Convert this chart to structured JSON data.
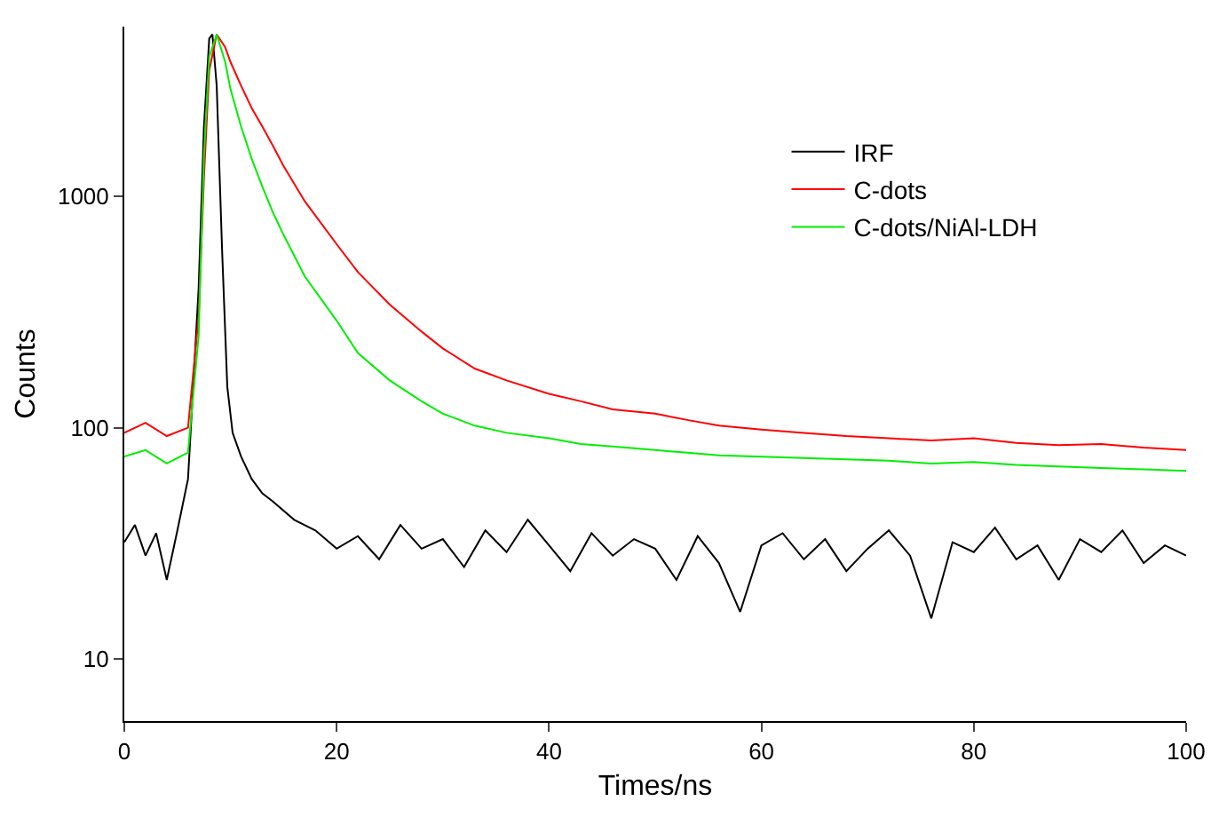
{
  "chart_data": {
    "type": "line",
    "xlabel": "Times/ns",
    "ylabel": "Counts",
    "log": "y",
    "xlim": [
      0,
      100
    ],
    "xticks": [
      0,
      20,
      40,
      60,
      80,
      100
    ],
    "ylim": [
      5.4,
      5400
    ],
    "yticks": [
      10,
      100,
      1000
    ],
    "legend": "top right",
    "marker": "none",
    "line_style": "solid",
    "series": [
      {
        "name": "IRF",
        "color": "#000000",
        "x": [
          0,
          1,
          2,
          3,
          4,
          5,
          6,
          7,
          7.5,
          8,
          8.3,
          8.7,
          9.2,
          9.7,
          10.2,
          11,
          12,
          13,
          14,
          16,
          18,
          20,
          22,
          24,
          26,
          28,
          30,
          32,
          34,
          36,
          38,
          40,
          42,
          44,
          46,
          48,
          50,
          52,
          54,
          56,
          58,
          60,
          62,
          64,
          66,
          68,
          70,
          72,
          74,
          76,
          78,
          80,
          82,
          84,
          86,
          88,
          90,
          92,
          94,
          96,
          98,
          100
        ],
        "values": [
          32,
          38,
          28,
          35,
          22,
          36,
          60,
          400,
          2000,
          4800,
          5000,
          3000,
          600,
          150,
          95,
          75,
          60,
          52,
          48,
          40,
          36,
          30,
          34,
          27,
          38,
          30,
          33,
          25,
          36,
          29,
          40,
          31,
          24,
          35,
          28,
          33,
          30,
          22,
          34,
          26,
          16,
          31,
          35,
          27,
          33,
          24,
          30,
          36,
          28,
          15,
          32,
          29,
          37,
          27,
          31,
          22,
          33,
          29,
          36,
          26,
          31,
          28
        ]
      },
      {
        "name": "C-dots",
        "color": "#ff0000",
        "x": [
          0,
          2,
          4,
          6,
          7,
          7.5,
          8,
          8.7,
          9.5,
          10,
          11,
          12,
          13,
          14,
          15,
          17,
          20,
          22,
          25,
          28,
          30,
          33,
          36,
          40,
          43,
          46,
          50,
          53,
          56,
          60,
          64,
          68,
          72,
          76,
          80,
          84,
          88,
          92,
          96,
          100
        ],
        "values": [
          95,
          105,
          92,
          100,
          300,
          1200,
          3500,
          5000,
          4400,
          3800,
          3000,
          2400,
          2000,
          1650,
          1350,
          950,
          620,
          470,
          340,
          260,
          220,
          180,
          160,
          140,
          130,
          120,
          115,
          108,
          102,
          98,
          95,
          92,
          90,
          88,
          90,
          86,
          84,
          85,
          82,
          80
        ]
      },
      {
        "name": "C-dots/NiAl-LDH",
        "color": "#00ee00",
        "x": [
          0,
          2,
          4,
          6,
          7,
          7.5,
          8,
          8.7,
          9.5,
          10,
          11,
          12,
          13,
          14,
          15,
          17,
          20,
          22,
          25,
          28,
          30,
          33,
          36,
          40,
          43,
          46,
          50,
          53,
          56,
          60,
          64,
          68,
          72,
          76,
          80,
          84,
          88,
          92,
          96,
          100
        ],
        "values": [
          75,
          80,
          70,
          78,
          250,
          1500,
          4000,
          5000,
          3800,
          2900,
          2000,
          1450,
          1100,
          850,
          680,
          450,
          290,
          210,
          160,
          130,
          115,
          102,
          95,
          90,
          85,
          83,
          80,
          78,
          76,
          75,
          74,
          73,
          72,
          70,
          71,
          69,
          68,
          67,
          66,
          65
        ]
      }
    ]
  }
}
